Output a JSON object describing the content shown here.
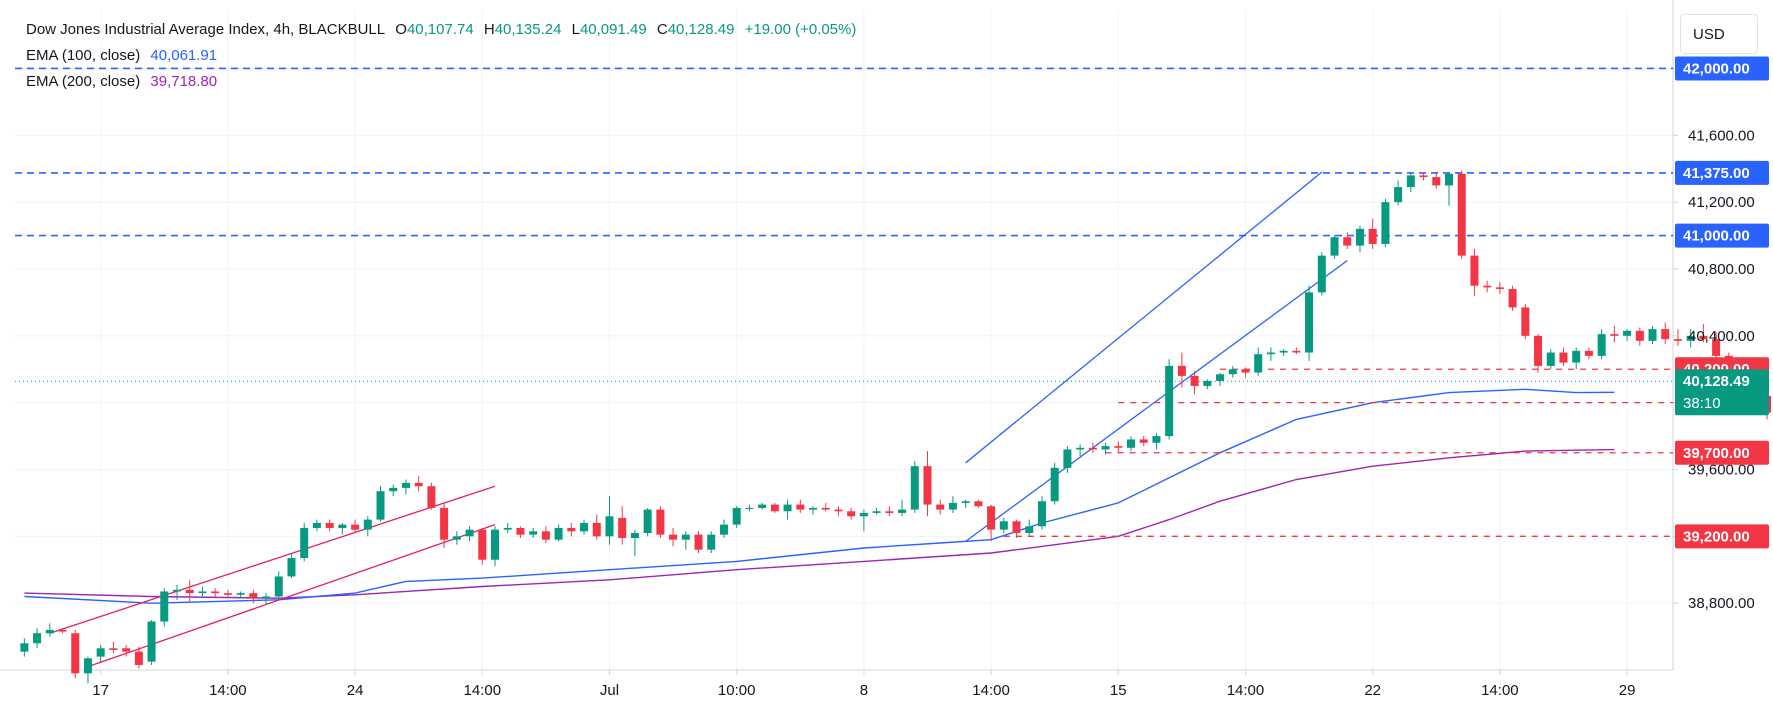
{
  "legend": {
    "symbol": "Dow Jones Industrial Average Index, 4h, BLACKBULL",
    "o_label": "O",
    "o": "40,107.74",
    "h_label": "H",
    "h": "40,135.24",
    "l_label": "L",
    "l": "40,091.49",
    "c_label": "C",
    "c": "40,128.49",
    "change": "+19.00 (+0.05%)",
    "ema100_label": "EMA (100, close)",
    "ema100": "40,061.91",
    "ema200_label": "EMA (200, close)",
    "ema200": "39,718.80"
  },
  "currency_button": "USD",
  "colors": {
    "up": "#089981",
    "down": "#f23645",
    "ema100": "#2962ff",
    "ema200": "#9c27b0",
    "blue_level": "#2962ff",
    "red_level": "#f23645",
    "channel_red": "#e91e63",
    "channel_blue": "#2962ff"
  },
  "chart_data": {
    "type": "candlestick",
    "timeframe": "4h",
    "ylim": [
      38400,
      42350
    ],
    "y_ticks": [
      38800,
      39200,
      39600,
      40000,
      40400,
      40800,
      41200,
      41600,
      42000
    ],
    "y_tick_labels": [
      "38,800.00",
      "39,200.00",
      "39,600.00",
      "40,000.00",
      "40,400.00",
      "40,800.00",
      "41,200.00",
      "41,600.00",
      "42,000.00"
    ],
    "x_ticks": [
      {
        "bar": 6,
        "label": "17"
      },
      {
        "bar": 16,
        "label": "14:00"
      },
      {
        "bar": 26,
        "label": "24"
      },
      {
        "bar": 36,
        "label": "14:00"
      },
      {
        "bar": 46,
        "label": "Jul"
      },
      {
        "bar": 56,
        "label": "10:00"
      },
      {
        "bar": 66,
        "label": "8"
      },
      {
        "bar": 76,
        "label": "14:00"
      },
      {
        "bar": 86,
        "label": "15"
      },
      {
        "bar": 96,
        "label": "14:00"
      },
      {
        "bar": 106,
        "label": "22"
      },
      {
        "bar": 116,
        "label": "14:00"
      },
      {
        "bar": 126,
        "label": "29"
      }
    ],
    "candles": [
      [
        38510,
        38590,
        38480,
        38560
      ],
      [
        38560,
        38650,
        38530,
        38620
      ],
      [
        38620,
        38680,
        38600,
        38640
      ],
      [
        38640,
        38650,
        38620,
        38630
      ],
      [
        38620,
        38640,
        38350,
        38380
      ],
      [
        38380,
        38480,
        38320,
        38470
      ],
      [
        38480,
        38550,
        38450,
        38530
      ],
      [
        38530,
        38570,
        38500,
        38520
      ],
      [
        38530,
        38550,
        38480,
        38510
      ],
      [
        38510,
        38540,
        38410,
        38430
      ],
      [
        38450,
        38700,
        38430,
        38690
      ],
      [
        38690,
        38890,
        38660,
        38870
      ],
      [
        38870,
        38910,
        38820,
        38880
      ],
      [
        38880,
        38940,
        38810,
        38860
      ],
      [
        38860,
        38900,
        38830,
        38870
      ],
      [
        38870,
        38890,
        38840,
        38860
      ],
      [
        38860,
        38880,
        38840,
        38850
      ],
      [
        38850,
        38870,
        38830,
        38860
      ],
      [
        38860,
        38880,
        38800,
        38830
      ],
      [
        38830,
        38860,
        38790,
        38840
      ],
      [
        38840,
        38990,
        38820,
        38960
      ],
      [
        38960,
        39100,
        38950,
        39070
      ],
      [
        39070,
        39280,
        39050,
        39250
      ],
      [
        39250,
        39300,
        39230,
        39280
      ],
      [
        39280,
        39300,
        39230,
        39250
      ],
      [
        39250,
        39280,
        39210,
        39270
      ],
      [
        39270,
        39300,
        39220,
        39240
      ],
      [
        39240,
        39320,
        39200,
        39300
      ],
      [
        39300,
        39500,
        39290,
        39470
      ],
      [
        39470,
        39510,
        39440,
        39490
      ],
      [
        39490,
        39540,
        39450,
        39520
      ],
      [
        39520,
        39560,
        39470,
        39500
      ],
      [
        39500,
        39520,
        39360,
        39370
      ],
      [
        39370,
        39400,
        39130,
        39180
      ],
      [
        39180,
        39230,
        39150,
        39200
      ],
      [
        39200,
        39260,
        39170,
        39240
      ],
      [
        39240,
        39250,
        39030,
        39060
      ],
      [
        39060,
        39260,
        39020,
        39240
      ],
      [
        39240,
        39280,
        39220,
        39250
      ],
      [
        39250,
        39260,
        39190,
        39210
      ],
      [
        39210,
        39250,
        39190,
        39230
      ],
      [
        39230,
        39260,
        39160,
        39180
      ],
      [
        39180,
        39270,
        39170,
        39250
      ],
      [
        39250,
        39280,
        39200,
        39230
      ],
      [
        39230,
        39300,
        39210,
        39280
      ],
      [
        39280,
        39330,
        39180,
        39200
      ],
      [
        39200,
        39440,
        39150,
        39320
      ],
      [
        39310,
        39380,
        39150,
        39190
      ],
      [
        39190,
        39240,
        39080,
        39220
      ],
      [
        39220,
        39370,
        39200,
        39360
      ],
      [
        39360,
        39380,
        39190,
        39210
      ],
      [
        39210,
        39250,
        39140,
        39180
      ],
      [
        39180,
        39230,
        39120,
        39210
      ],
      [
        39210,
        39230,
        39100,
        39120
      ],
      [
        39120,
        39230,
        39100,
        39210
      ],
      [
        39210,
        39300,
        39190,
        39270
      ],
      [
        39270,
        39380,
        39250,
        39370
      ],
      [
        39370,
        39390,
        39350,
        39370
      ],
      [
        39370,
        39400,
        39360,
        39390
      ],
      [
        39390,
        39400,
        39340,
        39350
      ],
      [
        39350,
        39420,
        39300,
        39390
      ],
      [
        39390,
        39420,
        39340,
        39360
      ],
      [
        39360,
        39380,
        39330,
        39370
      ],
      [
        39370,
        39400,
        39350,
        39360
      ],
      [
        39360,
        39380,
        39320,
        39350
      ],
      [
        39350,
        39370,
        39300,
        39320
      ],
      [
        39320,
        39360,
        39230,
        39340
      ],
      [
        39340,
        39370,
        39330,
        39350
      ],
      [
        39350,
        39380,
        39320,
        39340
      ],
      [
        39340,
        39420,
        39320,
        39360
      ],
      [
        39360,
        39650,
        39340,
        39620
      ],
      [
        39620,
        39710,
        39320,
        39390
      ],
      [
        39390,
        39420,
        39330,
        39360
      ],
      [
        39360,
        39440,
        39340,
        39400
      ],
      [
        39400,
        39420,
        39370,
        39410
      ],
      [
        39410,
        39420,
        39370,
        39380
      ],
      [
        39380,
        39390,
        39170,
        39240
      ],
      [
        39240,
        39310,
        39220,
        39290
      ],
      [
        39290,
        39300,
        39190,
        39220
      ],
      [
        39220,
        39300,
        39200,
        39260
      ],
      [
        39260,
        39440,
        39240,
        39410
      ],
      [
        39410,
        39640,
        39390,
        39610
      ],
      [
        39610,
        39740,
        39580,
        39720
      ],
      [
        39720,
        39750,
        39680,
        39730
      ],
      [
        39730,
        39760,
        39700,
        39720
      ],
      [
        39720,
        39760,
        39690,
        39740
      ],
      [
        39740,
        39770,
        39700,
        39730
      ],
      [
        39730,
        39800,
        39710,
        39780
      ],
      [
        39780,
        39800,
        39740,
        39760
      ],
      [
        39760,
        39820,
        39720,
        39800
      ],
      [
        39800,
        40260,
        39780,
        40220
      ],
      [
        40220,
        40300,
        40090,
        40160
      ],
      [
        40160,
        40190,
        40050,
        40100
      ],
      [
        40100,
        40140,
        40080,
        40130
      ],
      [
        40130,
        40180,
        40100,
        40170
      ],
      [
        40170,
        40220,
        40150,
        40200
      ],
      [
        40200,
        40210,
        40150,
        40180
      ],
      [
        40180,
        40330,
        40160,
        40290
      ],
      [
        40290,
        40330,
        40250,
        40300
      ],
      [
        40300,
        40320,
        40280,
        40310
      ],
      [
        40310,
        40330,
        40290,
        40300
      ],
      [
        40300,
        40700,
        40250,
        40660
      ],
      [
        40660,
        40900,
        40640,
        40880
      ],
      [
        40880,
        41000,
        40860,
        40990
      ],
      [
        40990,
        41020,
        40920,
        40940
      ],
      [
        40940,
        41060,
        40900,
        41040
      ],
      [
        41040,
        41100,
        40920,
        40950
      ],
      [
        40950,
        41220,
        40930,
        41200
      ],
      [
        41200,
        41330,
        41180,
        41290
      ],
      [
        41290,
        41380,
        41260,
        41360
      ],
      [
        41360,
        41380,
        41330,
        41350
      ],
      [
        41350,
        41370,
        41280,
        41300
      ],
      [
        41300,
        41380,
        41180,
        41370
      ],
      [
        41370,
        41390,
        40860,
        40880
      ],
      [
        40880,
        40920,
        40640,
        40700
      ],
      [
        40700,
        40730,
        40660,
        40690
      ],
      [
        40690,
        40720,
        40650,
        40680
      ],
      [
        40680,
        40700,
        40550,
        40570
      ],
      [
        40570,
        40590,
        40380,
        40400
      ],
      [
        40400,
        40410,
        40180,
        40220
      ],
      [
        40220,
        40320,
        40200,
        40300
      ],
      [
        40300,
        40330,
        40220,
        40240
      ],
      [
        40240,
        40330,
        40200,
        40310
      ],
      [
        40310,
        40330,
        40260,
        40280
      ],
      [
        40280,
        40440,
        40260,
        40410
      ],
      [
        40410,
        40460,
        40360,
        40400
      ],
      [
        40400,
        40440,
        40370,
        40430
      ],
      [
        40430,
        40450,
        40340,
        40370
      ],
      [
        40370,
        40460,
        40350,
        40440
      ],
      [
        40440,
        40480,
        40350,
        40380
      ],
      [
        40380,
        40440,
        40340,
        40370
      ],
      [
        40370,
        40440,
        40330,
        40400
      ],
      [
        40400,
        40470,
        40360,
        40380
      ],
      [
        40380,
        40420,
        40260,
        40280
      ],
      [
        40280,
        40300,
        40200,
        40240
      ],
      [
        40240,
        40260,
        40180,
        40210
      ],
      [
        40210,
        40230,
        40010,
        40040
      ],
      [
        40040,
        40080,
        39900,
        39940
      ],
      [
        39940,
        39980,
        39880,
        39930
      ],
      [
        39930,
        39970,
        39920,
        39950
      ],
      [
        39950,
        40000,
        39920,
        39940
      ],
      [
        39940,
        40100,
        39920,
        40080
      ],
      [
        40080,
        40470,
        40060,
        40260
      ],
      [
        40260,
        40270,
        40000,
        40040
      ],
      [
        40040,
        40140,
        40010,
        40100
      ],
      [
        40100,
        40135,
        40090,
        40128
      ]
    ],
    "ema100": [
      [
        0,
        38840
      ],
      [
        10,
        38800
      ],
      [
        20,
        38820
      ],
      [
        26,
        38860
      ],
      [
        30,
        38930
      ],
      [
        36,
        38950
      ],
      [
        46,
        39000
      ],
      [
        56,
        39050
      ],
      [
        66,
        39130
      ],
      [
        72,
        39160
      ],
      [
        76,
        39180
      ],
      [
        80,
        39280
      ],
      [
        86,
        39400
      ],
      [
        90,
        39550
      ],
      [
        94,
        39700
      ],
      [
        100,
        39900
      ],
      [
        106,
        40000
      ],
      [
        112,
        40060
      ],
      [
        118,
        40080
      ],
      [
        122,
        40060
      ],
      [
        125,
        40062
      ]
    ],
    "ema200": [
      [
        0,
        38860
      ],
      [
        10,
        38840
      ],
      [
        20,
        38830
      ],
      [
        26,
        38850
      ],
      [
        36,
        38900
      ],
      [
        46,
        38940
      ],
      [
        56,
        39000
      ],
      [
        66,
        39050
      ],
      [
        76,
        39100
      ],
      [
        80,
        39140
      ],
      [
        86,
        39200
      ],
      [
        90,
        39300
      ],
      [
        94,
        39410
      ],
      [
        100,
        39540
      ],
      [
        106,
        39620
      ],
      [
        112,
        39670
      ],
      [
        118,
        39710
      ],
      [
        125,
        39719
      ]
    ],
    "horizontal_levels": [
      {
        "value": 42000,
        "label": "42,000.00",
        "style": "blue",
        "from_bar": 0
      },
      {
        "value": 41375,
        "label": "41,375.00",
        "style": "blue",
        "from_bar": 0
      },
      {
        "value": 41000,
        "label": "41,000.00",
        "style": "blue",
        "from_bar": 0
      },
      {
        "value": 40200,
        "label": "40,200.00",
        "style": "red",
        "from_bar": 94
      },
      {
        "value": 40000,
        "label": "40,000.00",
        "style": "red",
        "from_bar": 86
      },
      {
        "value": 39700,
        "label": "39,700.00",
        "style": "red",
        "from_bar": 85
      },
      {
        "value": 39200,
        "label": "39,200.00",
        "style": "red",
        "from_bar": 77
      }
    ],
    "trend_channels": [
      {
        "color": "red",
        "lines": [
          [
            [
              2,
              38620
            ],
            [
              37,
              39500
            ]
          ],
          [
            [
              5,
              38420
            ],
            [
              37,
              39270
            ]
          ]
        ]
      },
      {
        "color": "blue",
        "lines": [
          [
            [
              74,
              39640
            ],
            [
              102,
              41380
            ]
          ],
          [
            [
              74,
              39170
            ],
            [
              104,
              40850
            ]
          ]
        ]
      }
    ],
    "current_price": {
      "value": 40128.49,
      "label": "40,128.49",
      "countdown": "38:10"
    }
  }
}
